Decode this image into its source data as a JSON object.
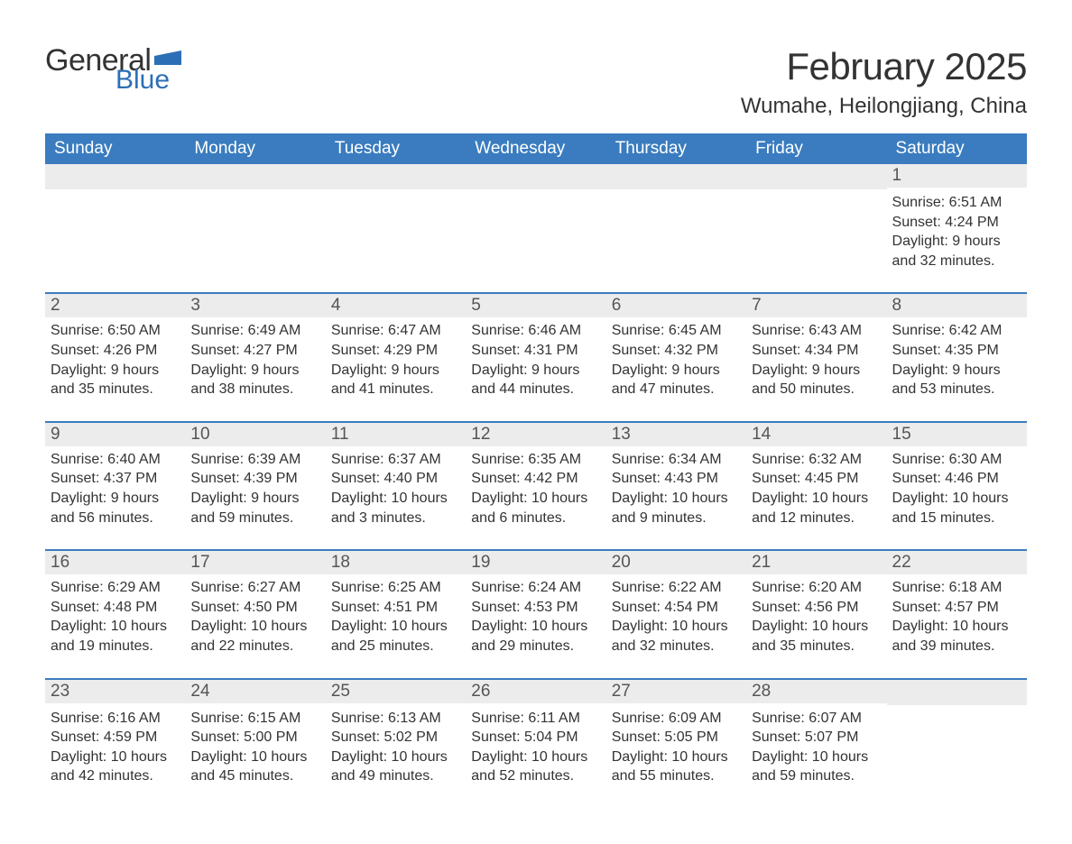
{
  "logo": {
    "part1": "General",
    "part2": "Blue",
    "flag_color": "#2d6fb6",
    "text_color_dark": "#333333"
  },
  "title": "February 2025",
  "location": "Wumahe, Heilongjiang, China",
  "colors": {
    "header_bg": "#3a7cbf",
    "header_text": "#ffffff",
    "daynum_bg": "#ececec",
    "week_sep": "#3a7cbf",
    "body_text": "#333333",
    "page_bg": "#ffffff"
  },
  "weekdays": [
    "Sunday",
    "Monday",
    "Tuesday",
    "Wednesday",
    "Thursday",
    "Friday",
    "Saturday"
  ],
  "labels": {
    "sunrise": "Sunrise",
    "sunset": "Sunset",
    "daylight": "Daylight"
  },
  "weeks": [
    {
      "cells": [
        {
          "empty": true
        },
        {
          "empty": true
        },
        {
          "empty": true
        },
        {
          "empty": true
        },
        {
          "empty": true
        },
        {
          "empty": true
        },
        {
          "day": "1",
          "sunrise": "6:51 AM",
          "sunset": "4:24 PM",
          "daylight": "9 hours and 32 minutes."
        }
      ]
    },
    {
      "cells": [
        {
          "day": "2",
          "sunrise": "6:50 AM",
          "sunset": "4:26 PM",
          "daylight": "9 hours and 35 minutes."
        },
        {
          "day": "3",
          "sunrise": "6:49 AM",
          "sunset": "4:27 PM",
          "daylight": "9 hours and 38 minutes."
        },
        {
          "day": "4",
          "sunrise": "6:47 AM",
          "sunset": "4:29 PM",
          "daylight": "9 hours and 41 minutes."
        },
        {
          "day": "5",
          "sunrise": "6:46 AM",
          "sunset": "4:31 PM",
          "daylight": "9 hours and 44 minutes."
        },
        {
          "day": "6",
          "sunrise": "6:45 AM",
          "sunset": "4:32 PM",
          "daylight": "9 hours and 47 minutes."
        },
        {
          "day": "7",
          "sunrise": "6:43 AM",
          "sunset": "4:34 PM",
          "daylight": "9 hours and 50 minutes."
        },
        {
          "day": "8",
          "sunrise": "6:42 AM",
          "sunset": "4:35 PM",
          "daylight": "9 hours and 53 minutes."
        }
      ]
    },
    {
      "cells": [
        {
          "day": "9",
          "sunrise": "6:40 AM",
          "sunset": "4:37 PM",
          "daylight": "9 hours and 56 minutes."
        },
        {
          "day": "10",
          "sunrise": "6:39 AM",
          "sunset": "4:39 PM",
          "daylight": "9 hours and 59 minutes."
        },
        {
          "day": "11",
          "sunrise": "6:37 AM",
          "sunset": "4:40 PM",
          "daylight": "10 hours and 3 minutes."
        },
        {
          "day": "12",
          "sunrise": "6:35 AM",
          "sunset": "4:42 PM",
          "daylight": "10 hours and 6 minutes."
        },
        {
          "day": "13",
          "sunrise": "6:34 AM",
          "sunset": "4:43 PM",
          "daylight": "10 hours and 9 minutes."
        },
        {
          "day": "14",
          "sunrise": "6:32 AM",
          "sunset": "4:45 PM",
          "daylight": "10 hours and 12 minutes."
        },
        {
          "day": "15",
          "sunrise": "6:30 AM",
          "sunset": "4:46 PM",
          "daylight": "10 hours and 15 minutes."
        }
      ]
    },
    {
      "cells": [
        {
          "day": "16",
          "sunrise": "6:29 AM",
          "sunset": "4:48 PM",
          "daylight": "10 hours and 19 minutes."
        },
        {
          "day": "17",
          "sunrise": "6:27 AM",
          "sunset": "4:50 PM",
          "daylight": "10 hours and 22 minutes."
        },
        {
          "day": "18",
          "sunrise": "6:25 AM",
          "sunset": "4:51 PM",
          "daylight": "10 hours and 25 minutes."
        },
        {
          "day": "19",
          "sunrise": "6:24 AM",
          "sunset": "4:53 PM",
          "daylight": "10 hours and 29 minutes."
        },
        {
          "day": "20",
          "sunrise": "6:22 AM",
          "sunset": "4:54 PM",
          "daylight": "10 hours and 32 minutes."
        },
        {
          "day": "21",
          "sunrise": "6:20 AM",
          "sunset": "4:56 PM",
          "daylight": "10 hours and 35 minutes."
        },
        {
          "day": "22",
          "sunrise": "6:18 AM",
          "sunset": "4:57 PM",
          "daylight": "10 hours and 39 minutes."
        }
      ]
    },
    {
      "cells": [
        {
          "day": "23",
          "sunrise": "6:16 AM",
          "sunset": "4:59 PM",
          "daylight": "10 hours and 42 minutes."
        },
        {
          "day": "24",
          "sunrise": "6:15 AM",
          "sunset": "5:00 PM",
          "daylight": "10 hours and 45 minutes."
        },
        {
          "day": "25",
          "sunrise": "6:13 AM",
          "sunset": "5:02 PM",
          "daylight": "10 hours and 49 minutes."
        },
        {
          "day": "26",
          "sunrise": "6:11 AM",
          "sunset": "5:04 PM",
          "daylight": "10 hours and 52 minutes."
        },
        {
          "day": "27",
          "sunrise": "6:09 AM",
          "sunset": "5:05 PM",
          "daylight": "10 hours and 55 minutes."
        },
        {
          "day": "28",
          "sunrise": "6:07 AM",
          "sunset": "5:07 PM",
          "daylight": "10 hours and 59 minutes."
        },
        {
          "empty": true
        }
      ]
    }
  ]
}
